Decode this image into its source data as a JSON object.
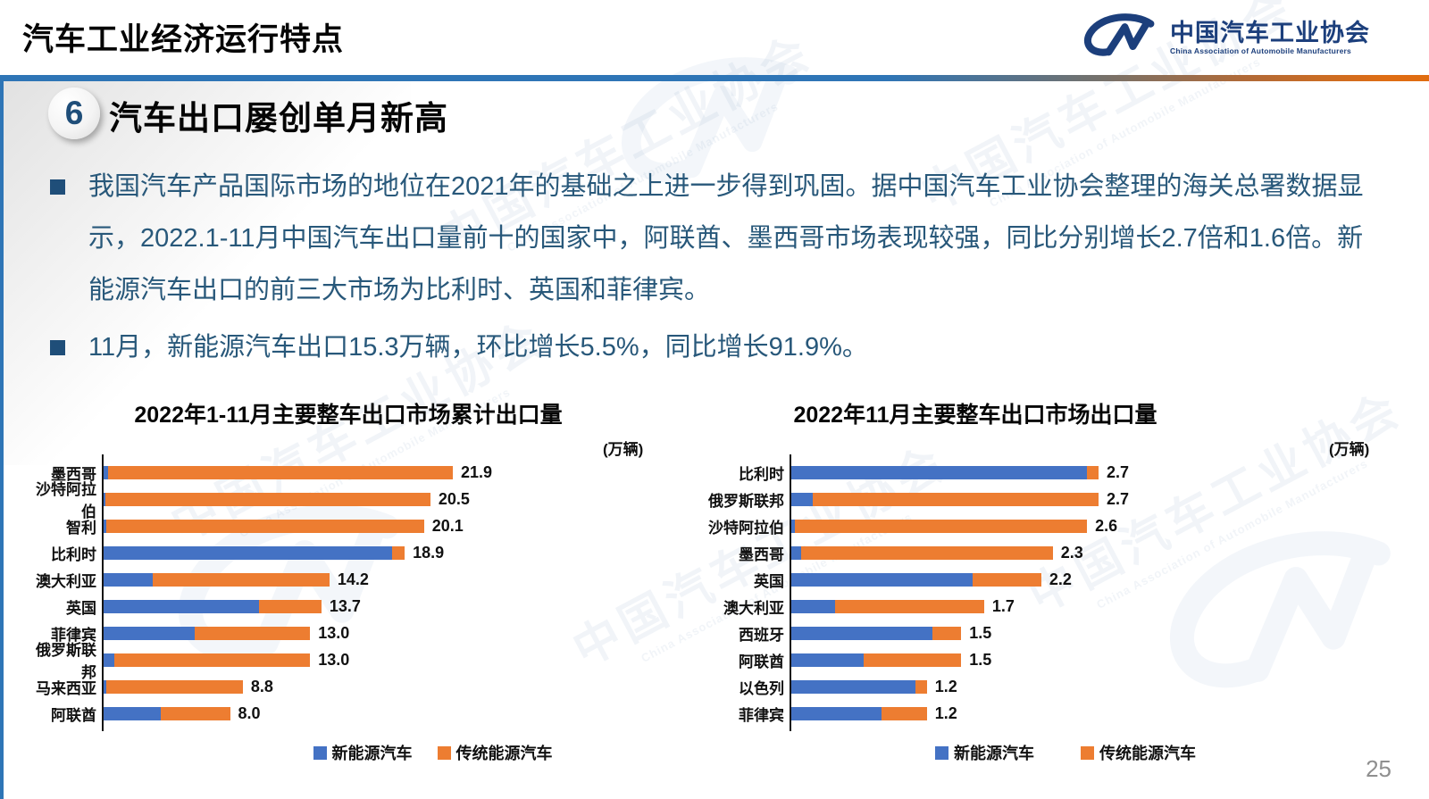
{
  "page": {
    "header_title": "汽车工业经济运行特点",
    "page_number": "25"
  },
  "logo": {
    "org_cn": "中国汽车工业协会",
    "org_en": "China Association of Automobile Manufacturers"
  },
  "section": {
    "number": "6",
    "heading": "汽车出口屡创单月新高"
  },
  "bullets": [
    "我国汽车产品国际市场的地位在2021年的基础之上进一步得到巩固。据中国汽车工业协会整理的海关总署数据显示，2022.1-11月中国汽车出口量前十的国家中，阿联酋、墨西哥市场表现较强，同比分别增长2.7倍和1.6倍。新能源汽车出口的前三大市场为比利时、英国和菲律宾。",
    "11月，新能源汽车出口15.3万辆，环比增长5.5%，同比增长91.9%。"
  ],
  "colors": {
    "nev_blue": "#4472C4",
    "ice_orange": "#ED7D31",
    "body_text": "#28587A",
    "divider_blue": "#2E75B6",
    "divider_orange": "#E06C10",
    "logo_navy": "#1C3F7C"
  },
  "watermark": {
    "cn": "中国汽车工业协会",
    "en": "China Association of Automobile Manufacturers"
  },
  "chart_data": [
    {
      "type": "bar",
      "orientation": "horizontal",
      "stacked": true,
      "title": "2022年1-11月主要整车出口市场累计出口量",
      "unit": "(万辆)",
      "legend_position": "bottom",
      "grid": false,
      "xmax": 21.9,
      "categories": [
        "墨西哥",
        "沙特阿拉伯",
        "智利",
        "比利时",
        "澳大利亚",
        "英国",
        "菲律宾",
        "俄罗斯联邦",
        "马来西亚",
        "阿联酋"
      ],
      "totals": [
        21.9,
        20.5,
        20.1,
        18.9,
        14.2,
        13.7,
        13.0,
        13.0,
        8.8,
        8.0
      ],
      "total_labels": [
        "21.9",
        "20.5",
        "20.1",
        "18.9",
        "14.2",
        "13.7",
        "13.0",
        "13.0",
        "8.8",
        "8.0"
      ],
      "series": [
        {
          "name": "新能源汽车",
          "color": "#4472C4",
          "values": [
            0.4,
            0.2,
            0.3,
            18.1,
            3.2,
            9.8,
            5.8,
            0.8,
            0.3,
            3.7
          ]
        },
        {
          "name": "传统能源汽车",
          "color": "#ED7D31",
          "values": [
            21.5,
            20.3,
            19.8,
            0.8,
            11.0,
            3.9,
            7.2,
            12.2,
            8.5,
            4.3
          ]
        }
      ]
    },
    {
      "type": "bar",
      "orientation": "horizontal",
      "stacked": true,
      "title": "2022年11月主要整车出口市场出口量",
      "unit": "(万辆)",
      "legend_position": "bottom",
      "grid": false,
      "xmax": 2.7,
      "categories": [
        "比利时",
        "俄罗斯联邦",
        "沙特阿拉伯",
        "墨西哥",
        "英国",
        "澳大利亚",
        "西班牙",
        "阿联酋",
        "以色列",
        "菲律宾"
      ],
      "totals": [
        2.7,
        2.7,
        2.6,
        2.3,
        2.2,
        1.7,
        1.5,
        1.5,
        1.2,
        1.2
      ],
      "total_labels": [
        "2.7",
        "2.7",
        "2.6",
        "2.3",
        "2.2",
        "1.7",
        "1.5",
        "1.5",
        "1.2",
        "1.2"
      ],
      "series": [
        {
          "name": "新能源汽车",
          "color": "#4472C4",
          "values": [
            2.6,
            0.2,
            0.05,
            0.1,
            1.6,
            0.4,
            1.25,
            0.65,
            1.1,
            0.8
          ]
        },
        {
          "name": "传统能源汽车",
          "color": "#ED7D31",
          "values": [
            0.1,
            2.5,
            2.55,
            2.2,
            0.6,
            1.3,
            0.25,
            0.85,
            0.1,
            0.4
          ]
        }
      ]
    }
  ]
}
